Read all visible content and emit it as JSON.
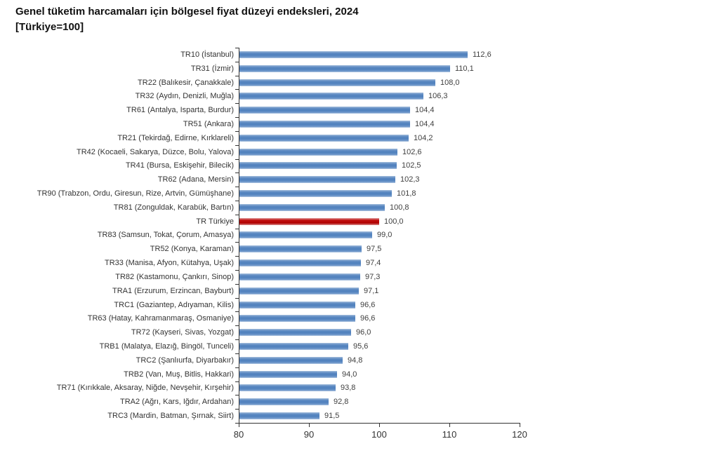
{
  "title": {
    "line1": "Genel tüketim harcamaları için bölgesel fiyat düzeyi endeksleri, 2024",
    "line2": "[Türkiye=100]"
  },
  "chart_data": {
    "type": "bar",
    "orientation": "horizontal",
    "title": "Genel tüketim harcamaları için bölgesel fiyat düzeyi endeksleri, 2024 [Türkiye=100]",
    "xlim": [
      80,
      120
    ],
    "x_ticks": [
      "80",
      "90",
      "100",
      "110",
      "120"
    ],
    "grid": false,
    "legend": "none",
    "highlight_category": "TR Türkiye",
    "colors": {
      "bar": "#4f81bd",
      "highlight_bar": "#c00000",
      "axis": "#333333",
      "label_text": "#333333",
      "value_text": "#404040"
    },
    "categories": [
      "TR10 (İstanbul)",
      "TR31 (İzmir)",
      "TR22 (Balıkesir, Çanakkale)",
      "TR32 (Aydın, Denizli, Muğla)",
      "TR61 (Antalya, Isparta, Burdur)",
      "TR51 (Ankara)",
      "TR21 (Tekirdağ, Edirne, Kırklareli)",
      "TR42 (Kocaeli, Sakarya, Düzce, Bolu, Yalova)",
      "TR41 (Bursa, Eskişehir, Bilecik)",
      "TR62 (Adana, Mersin)",
      "TR90 (Trabzon, Ordu, Giresun, Rize, Artvin, Gümüşhane)",
      "TR81 (Zonguldak, Karabük, Bartın)",
      "TR Türkiye",
      "TR83 (Samsun, Tokat, Çorum, Amasya)",
      "TR52 (Konya, Karaman)",
      "TR33 (Manisa, Afyon, Kütahya, Uşak)",
      "TR82 (Kastamonu, Çankırı, Sinop)",
      "TRA1 (Erzurum, Erzincan, Bayburt)",
      "TRC1 (Gaziantep, Adıyaman, Kilis)",
      "TR63 (Hatay, Kahramanmaraş, Osmaniye)",
      "TR72 (Kayseri, Sivas, Yozgat)",
      "TRB1 (Malatya, Elazığ, Bingöl, Tunceli)",
      "TRC2 (Şanlıurfa, Diyarbakır)",
      "TRB2 (Van, Muş, Bitlis, Hakkari)",
      "TR71 (Kırıkkale, Aksaray, Niğde, Nevşehir, Kırşehir)",
      "TRA2 (Ağrı, Kars, Iğdır, Ardahan)",
      "TRC3 (Mardin, Batman, Şırnak, Siirt)"
    ],
    "values": [
      112.6,
      110.1,
      108.0,
      106.3,
      104.4,
      104.4,
      104.2,
      102.6,
      102.5,
      102.3,
      101.8,
      100.8,
      100.0,
      99.0,
      97.5,
      97.4,
      97.3,
      97.1,
      96.6,
      96.6,
      96.0,
      95.6,
      94.8,
      94.0,
      93.8,
      92.8,
      91.5
    ],
    "value_labels": [
      "112,6",
      "110,1",
      "108,0",
      "106,3",
      "104,4",
      "104,4",
      "104,2",
      "102,6",
      "102,5",
      "102,3",
      "101,8",
      "100,8",
      "100,0",
      "99,0",
      "97,5",
      "97,4",
      "97,3",
      "97,1",
      "96,6",
      "96,6",
      "96,0",
      "95,6",
      "94,8",
      "94,0",
      "93,8",
      "92,8",
      "91,5"
    ]
  }
}
